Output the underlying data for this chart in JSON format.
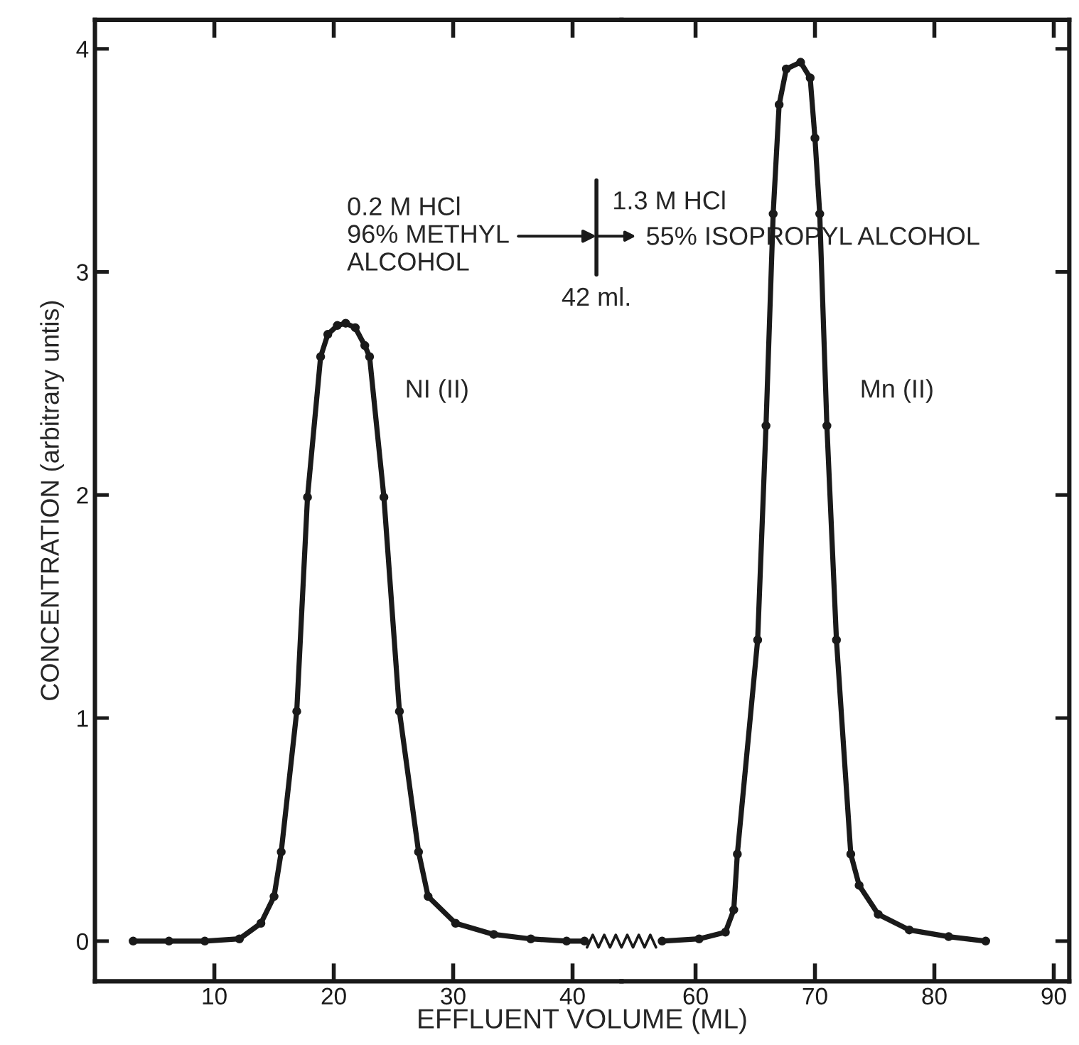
{
  "chart_data": [
    {
      "type": "line",
      "xlabel": "EFFLUENT VOLUME (ML)",
      "ylabel": "CONCENTRATION (arbitrary untis)",
      "series": [
        {
          "color": "#1a1a1a",
          "x": [
            3.2,
            6.2,
            9.2,
            12.1,
            13.9,
            15.0,
            15.6,
            16.9,
            17.8,
            18.9,
            19.5,
            20.3,
            21.0,
            21.8,
            22.6,
            23.0,
            24.2,
            25.5,
            27.1,
            27.9,
            30.2,
            33.4,
            36.5,
            39.5,
            41.0
          ],
          "values": [
            0,
            0,
            0,
            0.01,
            0.08,
            0.2,
            0.4,
            1.03,
            1.99,
            2.62,
            2.72,
            2.76,
            2.77,
            2.75,
            2.67,
            2.62,
            1.99,
            1.03,
            0.4,
            0.2,
            0.08,
            0.03,
            0.01,
            0,
            0
          ]
        }
      ],
      "xlim": [
        0,
        44.1
      ],
      "ylim": [
        -0.18,
        4.13
      ],
      "xticks": [
        10,
        20,
        30,
        40
      ],
      "yticks": [
        0,
        1,
        2,
        3,
        4
      ],
      "ref_lines": [
        {
          "axis": "x",
          "value": 42,
          "label": "42 ml."
        }
      ],
      "annotations": [
        "0.2 M HCl\n96% METHYL\nALCOHOL",
        "1.3 M HCl\n55% ISOPROPYL ALCOHOL",
        "NI (II)"
      ],
      "marker": "circle",
      "line_style": "solid"
    },
    {
      "type": "line",
      "series": [
        {
          "color": "#1a1a1a",
          "x": [
            57.2,
            60.3,
            62.5,
            63.2,
            63.5,
            65.2,
            65.9,
            66.5,
            67.0,
            67.6,
            68.8,
            69.6,
            70.0,
            70.4,
            71.0,
            71.8,
            73.0,
            73.7,
            75.3,
            77.9,
            81.2,
            84.3
          ],
          "values": [
            0,
            0.01,
            0.04,
            0.14,
            0.39,
            1.35,
            2.31,
            3.26,
            3.75,
            3.91,
            3.94,
            3.87,
            3.6,
            3.26,
            2.31,
            1.35,
            0.39,
            0.25,
            0.12,
            0.05,
            0.02,
            0
          ]
        }
      ],
      "xlim": [
        53.8,
        91.3
      ],
      "ylim": [
        -0.18,
        4.13
      ],
      "xticks": [
        60,
        70,
        80,
        90
      ],
      "yticks": [
        0,
        1,
        2,
        3,
        4
      ],
      "annotations": [
        "Mn (II)"
      ],
      "marker": "circle",
      "line_style": "solid",
      "tick_labels": "x"
    }
  ]
}
